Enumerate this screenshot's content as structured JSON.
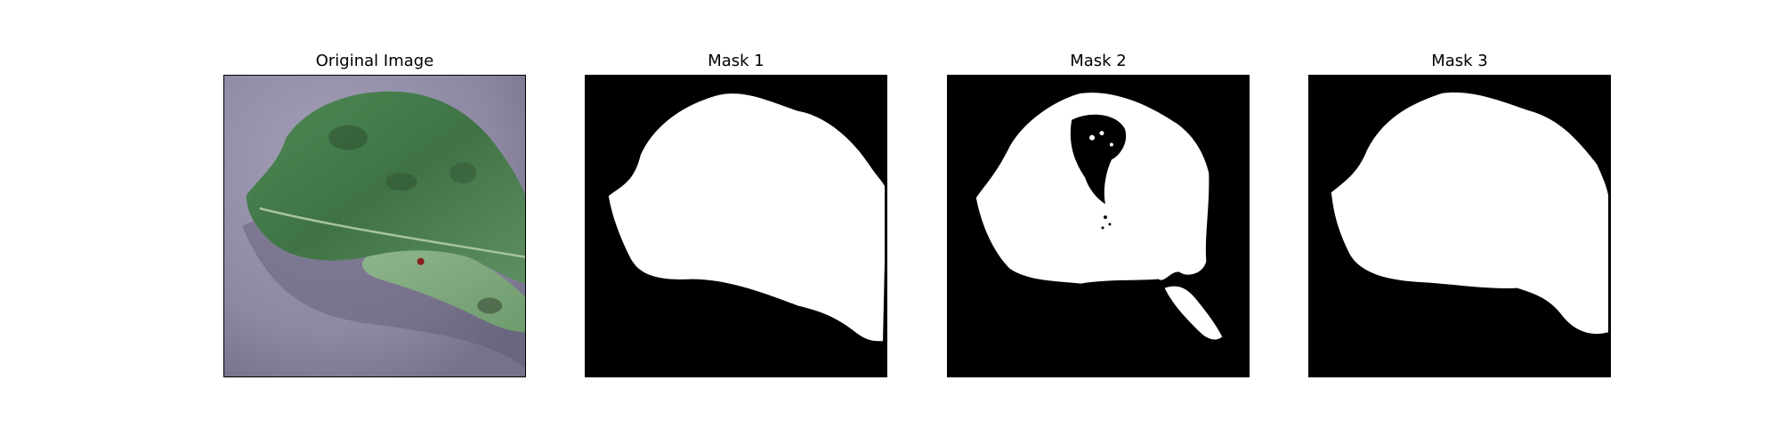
{
  "figure": {
    "panels": [
      {
        "title": "Original Image"
      },
      {
        "title": "Mask 1"
      },
      {
        "title": "Mask 2"
      },
      {
        "title": "Mask 3"
      }
    ]
  },
  "colors": {
    "background": "#ffffff",
    "mask_background": "#000000",
    "mask_foreground": "#ffffff",
    "surface": "#8f8aa3",
    "leaf_dark": "#3f6f44",
    "leaf_mid": "#4f8a55",
    "leaf_light": "#78a876",
    "lesion": "#2f3f2a"
  }
}
